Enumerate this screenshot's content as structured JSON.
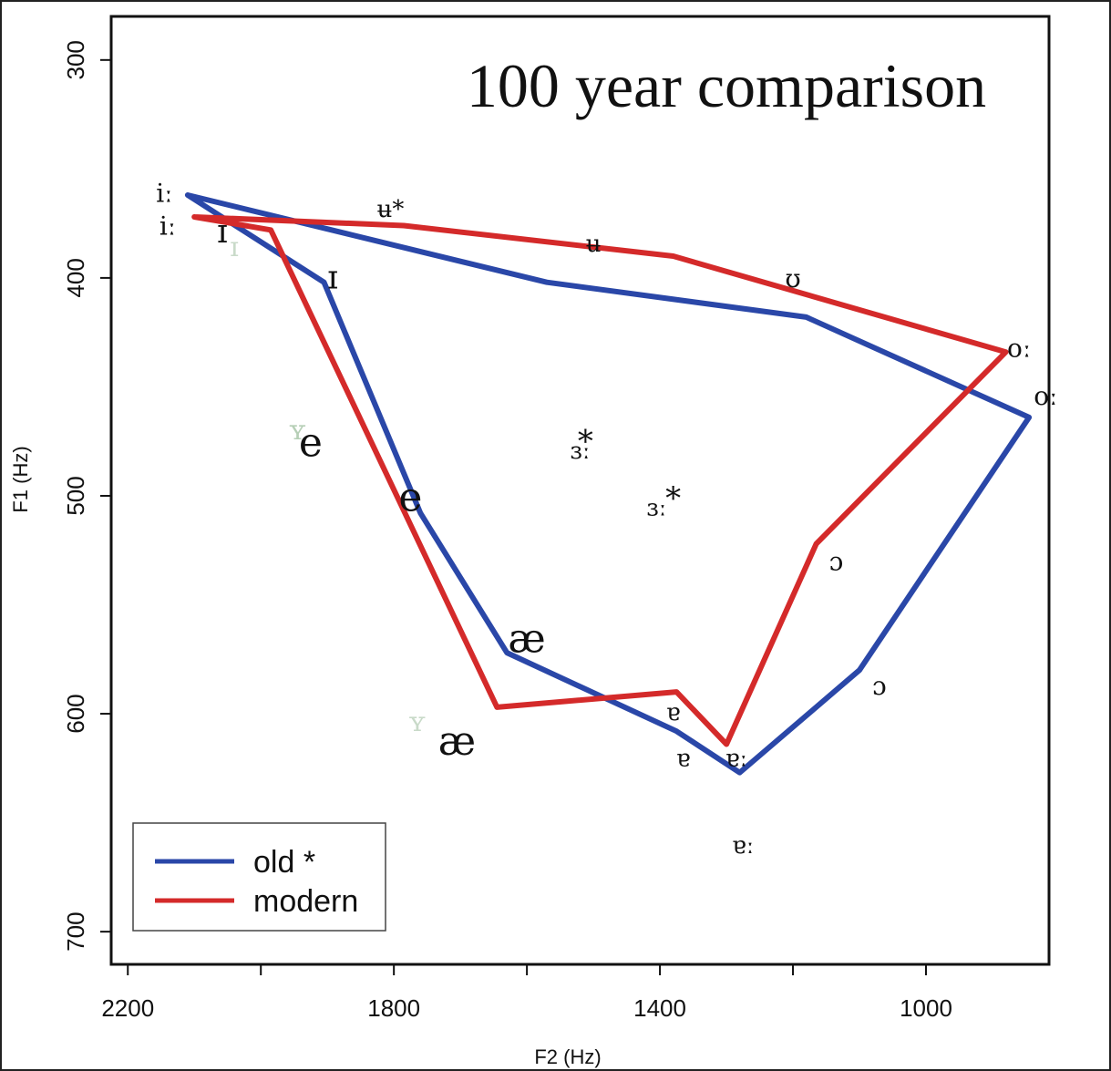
{
  "chart_data": {
    "type": "line",
    "title": "100 year comparison",
    "xlabel": "F2 (Hz)",
    "ylabel": "F1 (Hz)",
    "xlim": [
      2225,
      815
    ],
    "ylim": [
      715,
      280
    ],
    "x_reversed": true,
    "y_reversed": true,
    "x_ticks": [
      2200,
      1800,
      1400,
      1000
    ],
    "y_ticks": [
      300,
      400,
      500,
      600,
      700
    ],
    "legend_position": "bottom-left",
    "series": [
      {
        "name": "old *",
        "color": "#2a47a8",
        "points": [
          {
            "x": 2110,
            "y": 362
          },
          {
            "x": 1905,
            "y": 402
          },
          {
            "x": 1760,
            "y": 508
          },
          {
            "x": 1630,
            "y": 572
          },
          {
            "x": 1375,
            "y": 608
          },
          {
            "x": 1280,
            "y": 627
          },
          {
            "x": 1100,
            "y": 580
          },
          {
            "x": 845,
            "y": 464
          },
          {
            "x": 1180,
            "y": 418
          },
          {
            "x": 1570,
            "y": 402
          },
          {
            "x": 2110,
            "y": 362
          }
        ]
      },
      {
        "name": "modern",
        "color": "#d42a2a",
        "points": [
          {
            "x": 2100,
            "y": 372
          },
          {
            "x": 1985,
            "y": 378
          },
          {
            "x": 1645,
            "y": 597
          },
          {
            "x": 1375,
            "y": 590
          },
          {
            "x": 1300,
            "y": 614
          },
          {
            "x": 1165,
            "y": 522
          },
          {
            "x": 880,
            "y": 434
          },
          {
            "x": 1380,
            "y": 390
          },
          {
            "x": 1785,
            "y": 376
          },
          {
            "x": 2100,
            "y": 372
          }
        ]
      }
    ],
    "vowel_labels": [
      {
        "text": "iː",
        "x": 2145,
        "y": 362,
        "size": 28,
        "color": "#111111"
      },
      {
        "text": "iː",
        "x": 2140,
        "y": 377,
        "size": 28,
        "color": "#111111"
      },
      {
        "text": "ɪ",
        "x": 2058,
        "y": 380,
        "size": 36,
        "color": "#111111"
      },
      {
        "text": "ɪ",
        "x": 1892,
        "y": 401,
        "size": 36,
        "color": "#111111"
      },
      {
        "text": "ʉ*",
        "x": 1805,
        "y": 369,
        "size": 26,
        "color": "#111111"
      },
      {
        "text": "ʉ",
        "x": 1500,
        "y": 385,
        "size": 26,
        "color": "#111111"
      },
      {
        "text": "ʊ",
        "x": 1200,
        "y": 401,
        "size": 28,
        "color": "#111111"
      },
      {
        "text": "oː",
        "x": 860,
        "y": 433,
        "size": 28,
        "color": "#111111"
      },
      {
        "text": "oː",
        "x": 820,
        "y": 455,
        "size": 28,
        "color": "#111111"
      },
      {
        "text": "e",
        "x": 1925,
        "y": 477,
        "size": 44,
        "color": "#111111"
      },
      {
        "text": "e",
        "x": 1775,
        "y": 502,
        "size": 44,
        "color": "#111111"
      },
      {
        "text": "ɜː",
        "x": 1520,
        "y": 480,
        "size": 26,
        "color": "#111111"
      },
      {
        "text": "*",
        "x": 1512,
        "y": 476,
        "size": 34,
        "color": "#d42a2a"
      },
      {
        "text": "ɜː",
        "x": 1405,
        "y": 506,
        "size": 26,
        "color": "#111111"
      },
      {
        "text": "*",
        "x": 1380,
        "y": 502,
        "size": 34,
        "color": "#2a47a8"
      },
      {
        "text": "ɔ",
        "x": 1135,
        "y": 531,
        "size": 28,
        "color": "#111111"
      },
      {
        "text": "ɔ",
        "x": 1070,
        "y": 588,
        "size": 28,
        "color": "#111111"
      },
      {
        "text": "æ",
        "x": 1600,
        "y": 567,
        "size": 44,
        "color": "#111111"
      },
      {
        "text": "æ",
        "x": 1705,
        "y": 614,
        "size": 44,
        "color": "#111111"
      },
      {
        "text": "ɐ",
        "x": 1380,
        "y": 600,
        "size": 26,
        "color": "#111111"
      },
      {
        "text": "ɐ",
        "x": 1365,
        "y": 621,
        "size": 26,
        "color": "#111111"
      },
      {
        "text": "ɐː",
        "x": 1285,
        "y": 621,
        "size": 26,
        "color": "#111111"
      },
      {
        "text": "ɐː",
        "x": 1275,
        "y": 661,
        "size": 26,
        "color": "#111111"
      }
    ],
    "faint_marks": [
      {
        "text": "ɪ",
        "x": 2040,
        "y": 390,
        "color": "#c9dac9"
      },
      {
        "text": "ʏ",
        "x": 1945,
        "y": 474,
        "color": "#b6cfb6"
      },
      {
        "text": "ʏ",
        "x": 1765,
        "y": 608,
        "color": "#c9dac9"
      }
    ]
  }
}
